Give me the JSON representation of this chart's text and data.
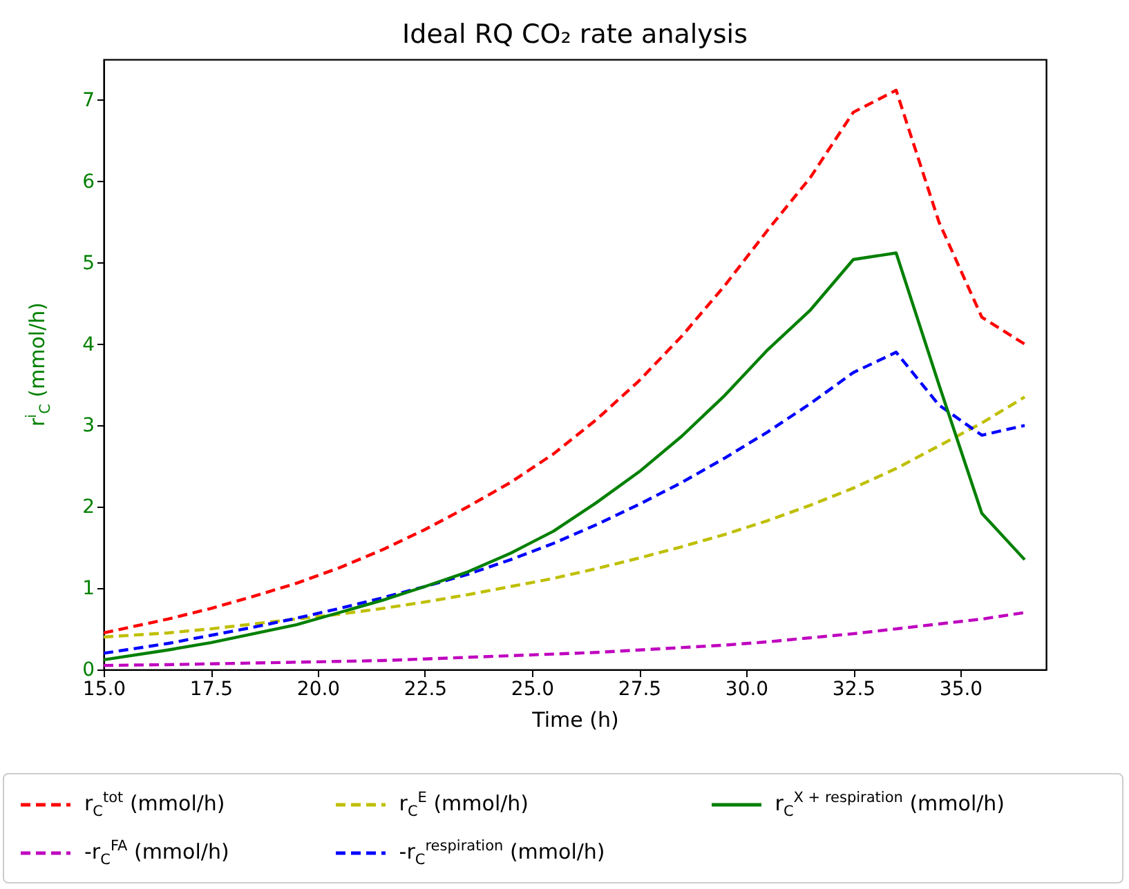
{
  "chart_data": {
    "type": "line",
    "title": "Ideal RQ CO₂ rate analysis",
    "xlabel": "Time (h)",
    "ylabel": "r$^{i}$$_{C}$ (mmol/h)",
    "x": [
      15,
      16.5,
      17.5,
      18.5,
      19.5,
      20.5,
      21.5,
      22.5,
      23.5,
      24.5,
      25.5,
      26.5,
      27.5,
      28.5,
      29.5,
      30.5,
      31.5,
      32.5,
      33.5,
      34.5,
      35.5,
      36.5
    ],
    "xlim": [
      15,
      37
    ],
    "ylim": [
      0,
      7.5
    ],
    "xticks": [
      {
        "value": 15,
        "label": "15.0"
      },
      {
        "value": 17.5,
        "label": "17.5"
      },
      {
        "value": 20,
        "label": "20.0"
      },
      {
        "value": 22.5,
        "label": "22.5"
      },
      {
        "value": 25,
        "label": "25.0"
      },
      {
        "value": 27.5,
        "label": "27.5"
      },
      {
        "value": 30,
        "label": "30.0"
      },
      {
        "value": 32.5,
        "label": "32.5"
      },
      {
        "value": 35,
        "label": "35.0"
      }
    ],
    "yticks": [
      0,
      1,
      2,
      3,
      4,
      5,
      6,
      7
    ],
    "legend": "bottom",
    "series": [
      {
        "name": "r$_{C}$$^{tot}$ (mmol/h)",
        "color": "#ff0000",
        "line_style": "dashed",
        "values": [
          0.45,
          0.62,
          0.75,
          0.9,
          1.06,
          1.25,
          1.47,
          1.72,
          2.0,
          2.3,
          2.65,
          3.07,
          3.55,
          4.1,
          4.72,
          5.4,
          6.05,
          6.85,
          7.12,
          5.5,
          4.33,
          4.0
        ]
      },
      {
        "name": "-r$_{C}$$^{FA}$ (mmol/h)",
        "color": "#bf00bf",
        "line_style": "dashed",
        "values": [
          0.05,
          0.06,
          0.07,
          0.08,
          0.09,
          0.1,
          0.11,
          0.13,
          0.15,
          0.17,
          0.19,
          0.21,
          0.24,
          0.27,
          0.3,
          0.34,
          0.39,
          0.44,
          0.5,
          0.56,
          0.62,
          0.7
        ]
      },
      {
        "name": "r$_{C}$$^{E}$ (mmol/h)",
        "color": "#bfbf00",
        "line_style": "dashed",
        "values": [
          0.4,
          0.45,
          0.5,
          0.56,
          0.62,
          0.68,
          0.75,
          0.83,
          0.92,
          1.02,
          1.12,
          1.24,
          1.37,
          1.51,
          1.66,
          1.83,
          2.02,
          2.23,
          2.47,
          2.75,
          3.03,
          3.35
        ]
      },
      {
        "name": "-r$_{C}$$^{respiration}$ (mmol/h)",
        "color": "#0000ff",
        "line_style": "dashed",
        "values": [
          0.2,
          0.32,
          0.42,
          0.52,
          0.63,
          0.75,
          0.88,
          1.02,
          1.17,
          1.35,
          1.55,
          1.78,
          2.03,
          2.3,
          2.6,
          2.92,
          3.27,
          3.65,
          3.9,
          3.25,
          2.88,
          3.0
        ]
      },
      {
        "name": "r$_{C}$$^{X + respiration}$ (mmol/h)",
        "color": "#008000",
        "line_style": "solid",
        "values": [
          0.12,
          0.24,
          0.33,
          0.44,
          0.55,
          0.7,
          0.85,
          1.02,
          1.2,
          1.43,
          1.7,
          2.05,
          2.43,
          2.87,
          3.37,
          3.93,
          4.42,
          5.04,
          5.12,
          3.5,
          1.92,
          1.35
        ]
      }
    ]
  }
}
